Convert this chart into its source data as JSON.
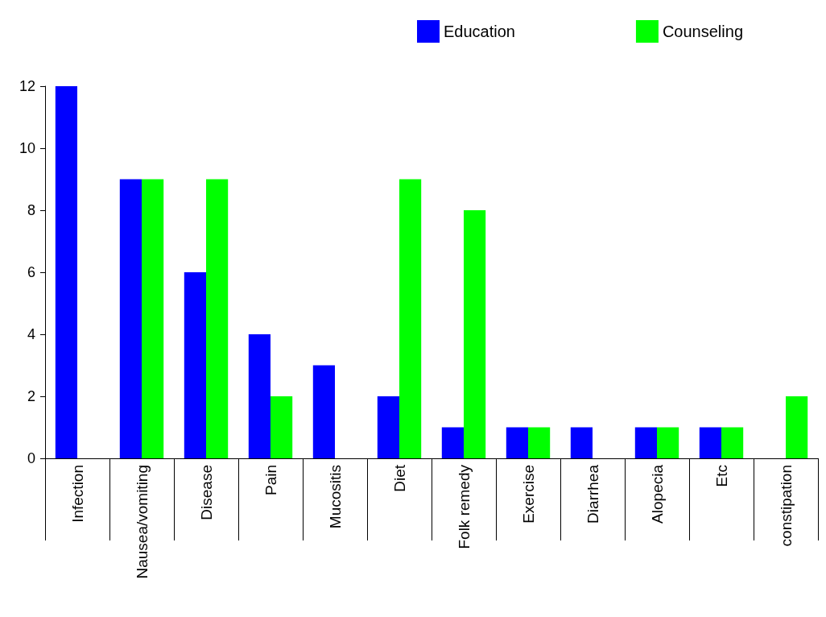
{
  "chart_data": {
    "type": "bar",
    "categories": [
      "Infection",
      "Nausea/vomiting",
      "Disease",
      "Pain",
      "Mucositis",
      "Diet",
      "Folk remedy",
      "Exercise",
      "Diarrhea",
      "Alopecia",
      "Etc",
      "constipation"
    ],
    "series": [
      {
        "name": "Education",
        "color": "#0000ff",
        "values": [
          12,
          9,
          6,
          4,
          3,
          2,
          1,
          1,
          1,
          1,
          1,
          0
        ]
      },
      {
        "name": "Counseling",
        "color": "#00ff00",
        "values": [
          0,
          9,
          9,
          2,
          0,
          9,
          8,
          1,
          0,
          1,
          1,
          2
        ]
      }
    ],
    "ylim": [
      0,
      12
    ],
    "yticks": [
      0,
      2,
      4,
      6,
      8,
      10,
      12
    ],
    "grid": false,
    "legend": "top right"
  }
}
